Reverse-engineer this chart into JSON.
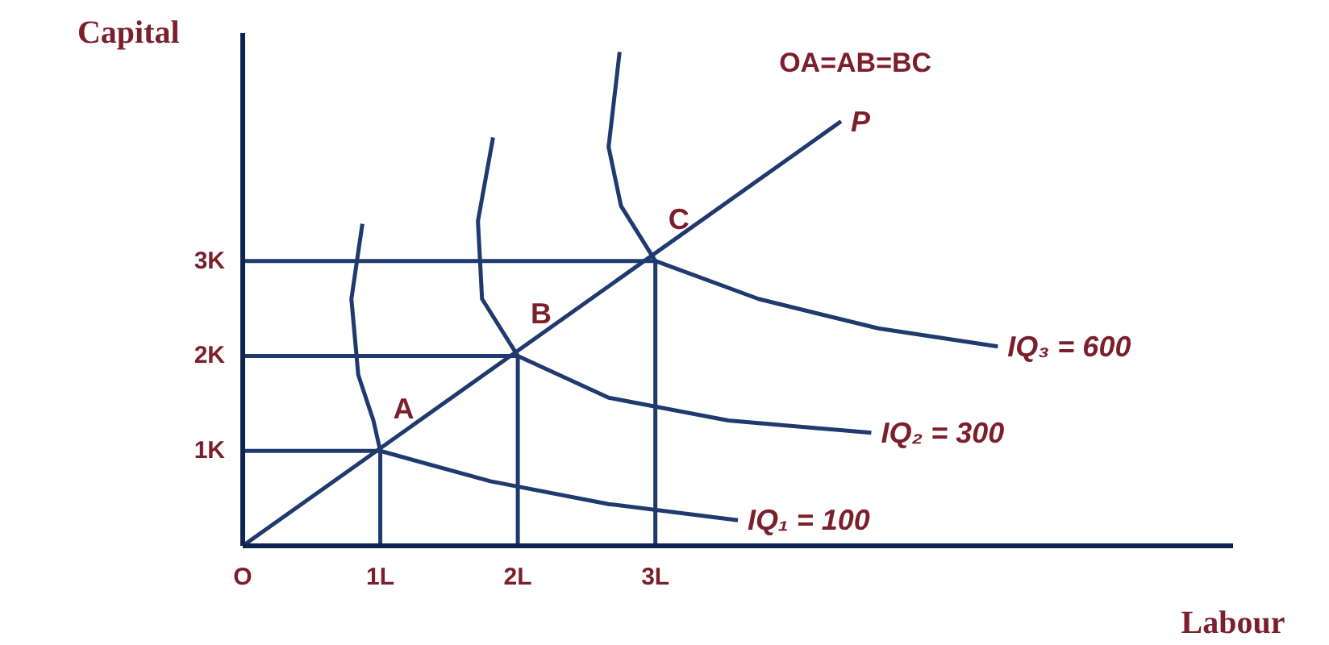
{
  "chart_data": {
    "type": "line",
    "xlabel": "Labour",
    "ylabel": "Capital",
    "xlim": [
      0,
      7.2
    ],
    "ylim": [
      0,
      5.4
    ],
    "xticks": [
      {
        "value": 0,
        "label": "O"
      },
      {
        "value": 1,
        "label": "1L"
      },
      {
        "value": 2,
        "label": "2L"
      },
      {
        "value": 3,
        "label": "3L"
      }
    ],
    "yticks": [
      {
        "value": 1,
        "label": "1K"
      },
      {
        "value": 2,
        "label": "2K"
      },
      {
        "value": 3,
        "label": "3K"
      }
    ],
    "grid": false,
    "marker": "none",
    "line_style": "solid",
    "series": [
      {
        "name": "IQ₁ = 100",
        "color": "#1f3a6e",
        "x": [
          0.87,
          0.79,
          0.84,
          0.95,
          1,
          1.8,
          2.66,
          3.6
        ],
        "values": [
          3.39,
          2.6,
          1.8,
          1.32,
          1,
          0.68,
          0.44,
          0.27
        ]
      },
      {
        "name": "IQ₂ = 300",
        "color": "#1f3a6e",
        "x": [
          1.82,
          1.71,
          1.74,
          2,
          2.66,
          3.53,
          4.57
        ],
        "values": [
          4.3,
          3.42,
          2.6,
          2,
          1.56,
          1.32,
          1.19
        ]
      },
      {
        "name": "IQ₃ = 600",
        "color": "#1f3a6e",
        "x": [
          2.74,
          2.66,
          2.75,
          3,
          3.75,
          4.62,
          5.49
        ],
        "values": [
          5.2,
          4.2,
          3.58,
          3,
          2.6,
          2.29,
          2.1
        ]
      },
      {
        "name": "P",
        "color": "#1f3a6e",
        "x": [
          0,
          4.35
        ],
        "values": [
          0,
          4.47
        ]
      },
      {
        "color": "#1f3a6e",
        "x": [
          0,
          1,
          1
        ],
        "values": [
          1,
          1,
          0
        ]
      },
      {
        "color": "#1f3a6e",
        "x": [
          0,
          2,
          2
        ],
        "values": [
          2,
          2,
          0
        ]
      },
      {
        "color": "#1f3a6e",
        "x": [
          0,
          3,
          3
        ],
        "values": [
          3,
          3,
          0
        ]
      }
    ],
    "annotations": [
      {
        "text": "A",
        "x": 1,
        "y": 1
      },
      {
        "text": "B",
        "x": 2,
        "y": 2
      },
      {
        "text": "C",
        "x": 3,
        "y": 3
      },
      "OA=AB=BC"
    ]
  }
}
